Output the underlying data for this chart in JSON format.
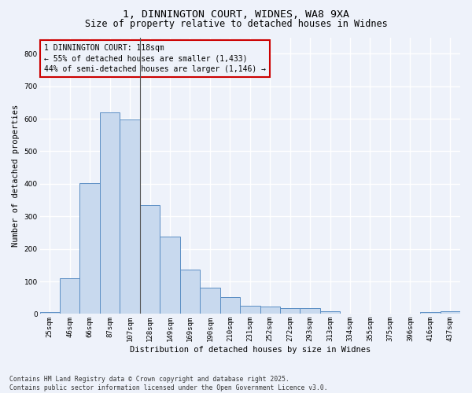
{
  "title": "1, DINNINGTON COURT, WIDNES, WA8 9XA",
  "subtitle": "Size of property relative to detached houses in Widnes",
  "xlabel": "Distribution of detached houses by size in Widnes",
  "ylabel": "Number of detached properties",
  "categories": [
    "25sqm",
    "46sqm",
    "66sqm",
    "87sqm",
    "107sqm",
    "128sqm",
    "149sqm",
    "169sqm",
    "190sqm",
    "210sqm",
    "231sqm",
    "252sqm",
    "272sqm",
    "293sqm",
    "313sqm",
    "334sqm",
    "355sqm",
    "375sqm",
    "396sqm",
    "416sqm",
    "437sqm"
  ],
  "values": [
    5,
    110,
    403,
    620,
    597,
    335,
    237,
    137,
    80,
    52,
    24,
    22,
    17,
    18,
    8,
    0,
    0,
    0,
    0,
    7,
    8
  ],
  "bar_color": "#c8d9ee",
  "bar_edge_color": "#5b8ec4",
  "background_color": "#eef2fa",
  "grid_color": "#ffffff",
  "annotation_box_color": "#cc0000",
  "annotation_line1": "1 DINNINGTON COURT: 118sqm",
  "annotation_line2": "← 55% of detached houses are smaller (1,433)",
  "annotation_line3": "44% of semi-detached houses are larger (1,146) →",
  "ylim": [
    0,
    850
  ],
  "yticks": [
    0,
    100,
    200,
    300,
    400,
    500,
    600,
    700,
    800
  ],
  "footer_text": "Contains HM Land Registry data © Crown copyright and database right 2025.\nContains public sector information licensed under the Open Government Licence v3.0.",
  "title_fontsize": 9.5,
  "subtitle_fontsize": 8.5,
  "axis_label_fontsize": 7.5,
  "tick_fontsize": 6.5,
  "annotation_fontsize": 7.0,
  "footer_fontsize": 5.8
}
